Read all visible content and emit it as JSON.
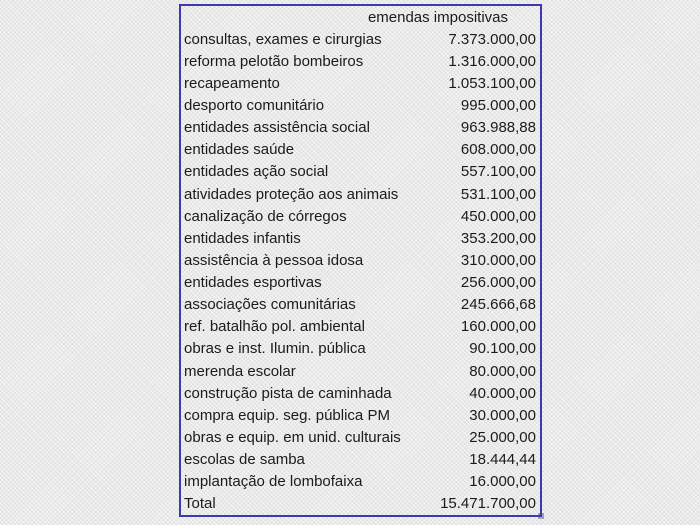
{
  "page": {
    "background_color": "#eaeaea",
    "border_color": "#3b3bad",
    "text_color": "#1b1b1b"
  },
  "table": {
    "header": "emendas impositivas",
    "rows": [
      {
        "label": "consultas, exames e cirurgias",
        "value": "7.373.000,00"
      },
      {
        "label": "reforma pelotão bombeiros",
        "value": "1.316.000,00"
      },
      {
        "label": "recapeamento",
        "value": "1.053.100,00"
      },
      {
        "label": "desporto comunitário",
        "value": "995.000,00"
      },
      {
        "label": "entidades assistência social",
        "value": "963.988,88"
      },
      {
        "label": "entidades saúde",
        "value": "608.000,00"
      },
      {
        "label": "entidades ação social",
        "value": "557.100,00"
      },
      {
        "label": "atividades proteção aos animais",
        "value": "531.100,00"
      },
      {
        "label": "canalização de córregos",
        "value": "450.000,00"
      },
      {
        "label": "entidades infantis",
        "value": "353.200,00"
      },
      {
        "label": "assistência à pessoa idosa",
        "value": "310.000,00"
      },
      {
        "label": "entidades esportivas",
        "value": "256.000,00"
      },
      {
        "label": "associações comunitárias",
        "value": "245.666,68"
      },
      {
        "label": "ref. batalhão pol. ambiental",
        "value": "160.000,00"
      },
      {
        "label": "obras e inst. Ilumin. pública",
        "value": "90.100,00"
      },
      {
        "label": "merenda escolar",
        "value": "80.000,00"
      },
      {
        "label": "construção pista de caminhada",
        "value": "40.000,00"
      },
      {
        "label": "compra equip. seg. pública PM",
        "value": "30.000,00"
      },
      {
        "label": "obras e equip. em unid. culturais",
        "value": "25.000,00"
      },
      {
        "label": "escolas de samba",
        "value": "18.444,44"
      },
      {
        "label": "implantação de lombofaixa",
        "value": "16.000,00"
      }
    ],
    "total": {
      "label": "Total",
      "value": "15.471.700,00"
    }
  },
  "chart_data": {
    "type": "table",
    "title": "emendas impositivas",
    "categories": [
      "consultas, exames e cirurgias",
      "reforma pelotão bombeiros",
      "recapeamento",
      "desporto comunitário",
      "entidades assistência social",
      "entidades saúde",
      "entidades ação social",
      "atividades proteção aos animais",
      "canalização de córregos",
      "entidades infantis",
      "assistência à pessoa idosa",
      "entidades esportivas",
      "associações comunitárias",
      "ref. batalhão pol. ambiental",
      "obras e inst. Ilumin. pública",
      "merenda escolar",
      "construção pista de caminhada",
      "compra equip. seg. pública PM",
      "obras e equip. em unid. culturais",
      "escolas de samba",
      "implantação de lombofaixa"
    ],
    "values": [
      7373000.0,
      1316000.0,
      1053100.0,
      995000.0,
      963988.88,
      608000.0,
      557100.0,
      531100.0,
      450000.0,
      353200.0,
      310000.0,
      256000.0,
      245666.68,
      160000.0,
      90100.0,
      80000.0,
      40000.0,
      30000.0,
      25000.0,
      18444.44,
      16000.0
    ],
    "total_label": "Total",
    "total_value": 15471700.0,
    "number_format": "pt-BR (thousands '.', decimal ',')"
  }
}
